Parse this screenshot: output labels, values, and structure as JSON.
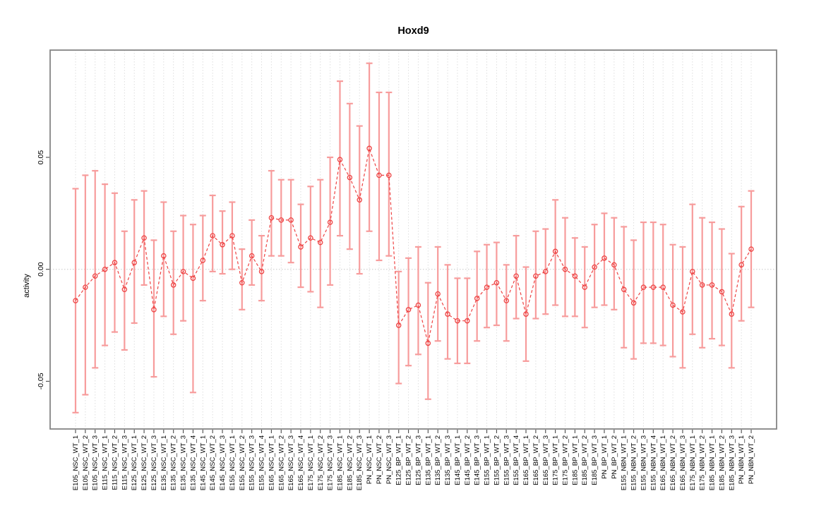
{
  "window": {
    "kind": "r-plot-device"
  },
  "colors": {
    "point_line": "#ee4343",
    "error_bar": "#f79c9c",
    "grid": "#dedede",
    "zero_line": "#c8c8c8",
    "axis_box": "#858585",
    "tick": "#4a4a4a",
    "text": "#000000",
    "background": "#ffffff"
  },
  "chart_data": {
    "type": "scatter",
    "title": "Hoxd9",
    "xlabel": "",
    "ylabel": "activity",
    "ylim": [
      -0.0713,
      0.0979
    ],
    "yticks": [
      -0.05,
      0.0,
      0.05
    ],
    "ytick_labels": [
      "-0.05",
      "0.00",
      "0.05"
    ],
    "grid": "vertical-dotted-per-category-plus-dotted-zero-line",
    "legend": "none",
    "marker": "open-circle",
    "line_style": "dashed",
    "error_bars": "vertical-with-caps",
    "categories": [
      "E105_NSC_WT_1",
      "E105_NSC_WT_2",
      "E105_NSC_WT_3",
      "E115_NSC_WT_1",
      "E115_NSC_WT_2",
      "E115_NSC_WT_3",
      "E125_NSC_WT_1",
      "E125_NSC_WT_2",
      "E125_NSC_WT_3",
      "E135_NSC_WT_1",
      "E135_NSC_WT_2",
      "E135_NSC_WT_3",
      "E135_NSC_WT_4",
      "E145_NSC_WT_1",
      "E145_NSC_WT_2",
      "E145_NSC_WT_3",
      "E155_NSC_WT_1",
      "E155_NSC_WT_2",
      "E155_NSC_WT_3",
      "E155_NSC_WT_4",
      "E165_NSC_WT_1",
      "E165_NSC_WT_2",
      "E165_NSC_WT_3",
      "E165_NSC_WT_4",
      "E175_NSC_WT_1",
      "E175_NSC_WT_2",
      "E175_NSC_WT_3",
      "E185_NSC_WT_1",
      "E185_NSC_WT_2",
      "E185_NSC_WT_3",
      "PN_NSC_WT_1",
      "PN_NSC_WT_2",
      "PN_NSC_WT_3",
      "E125_BP_WT_1",
      "E125_BP_WT_2",
      "E125_BP_WT_3",
      "E135_BP_WT_1",
      "E135_BP_WT_2",
      "E135_BP_WT_3",
      "E145_BP_WT_1",
      "E145_BP_WT_2",
      "E145_BP_WT_3",
      "E155_BP_WT_1",
      "E155_BP_WT_2",
      "E155_BP_WT_3",
      "E155_BP_WT_4",
      "E165_BP_WT_1",
      "E165_BP_WT_2",
      "E165_BP_WT_3",
      "E175_BP_WT_1",
      "E175_BP_WT_2",
      "E185_BP_WT_1",
      "E185_BP_WT_2",
      "E185_BP_WT_3",
      "PN_BP_WT_1",
      "PN_BP_WT_2",
      "E155_NBN_WT_1",
      "E155_NBN_WT_2",
      "E155_NBN_WT_3",
      "E155_NBN_WT_4",
      "E165_NBN_WT_1",
      "E165_NBN_WT_2",
      "E165_NBN_WT_3",
      "E175_NBN_WT_1",
      "E175_NBN_WT_2",
      "E185_NBN_WT_1",
      "E185_NBN_WT_2",
      "E185_NBN_WT_3",
      "PN_NBN_WT_1",
      "PN_NBN_WT_2"
    ],
    "series": [
      {
        "name": "mean_activity",
        "values": [
          -0.014,
          -0.008,
          -0.003,
          0.0,
          0.003,
          -0.009,
          0.003,
          0.014,
          -0.018,
          0.006,
          -0.007,
          -0.001,
          -0.004,
          0.004,
          0.015,
          0.011,
          0.015,
          -0.006,
          0.006,
          -0.001,
          0.023,
          0.022,
          0.022,
          0.01,
          0.014,
          0.012,
          0.021,
          0.049,
          0.041,
          0.031,
          0.054,
          0.042,
          0.042,
          -0.025,
          -0.018,
          -0.016,
          -0.033,
          -0.011,
          -0.02,
          -0.023,
          -0.023,
          -0.013,
          -0.008,
          -0.006,
          -0.014,
          -0.003,
          -0.02,
          -0.003,
          -0.001,
          0.008,
          0.0,
          -0.003,
          -0.008,
          0.001,
          0.005,
          0.002,
          -0.009,
          -0.015,
          -0.008,
          -0.008,
          -0.008,
          -0.016,
          -0.019,
          -0.001,
          -0.007,
          -0.007,
          -0.01,
          -0.02,
          0.002,
          0.009
        ]
      },
      {
        "name": "error_lower",
        "values": [
          -0.064,
          -0.056,
          -0.044,
          -0.034,
          -0.028,
          -0.036,
          -0.024,
          -0.007,
          -0.048,
          -0.021,
          -0.029,
          -0.023,
          -0.055,
          -0.014,
          -0.001,
          -0.002,
          0.0,
          -0.018,
          -0.007,
          -0.014,
          0.006,
          0.006,
          0.003,
          -0.008,
          -0.01,
          -0.017,
          -0.007,
          0.015,
          0.009,
          -0.002,
          0.017,
          0.004,
          0.006,
          -0.051,
          -0.043,
          -0.038,
          -0.058,
          -0.032,
          -0.04,
          -0.042,
          -0.042,
          -0.032,
          -0.026,
          -0.025,
          -0.032,
          -0.022,
          -0.041,
          -0.022,
          -0.02,
          -0.016,
          -0.021,
          -0.021,
          -0.026,
          -0.017,
          -0.016,
          -0.018,
          -0.035,
          -0.04,
          -0.033,
          -0.033,
          -0.034,
          -0.039,
          -0.044,
          -0.029,
          -0.035,
          -0.031,
          -0.034,
          -0.044,
          -0.023,
          -0.017
        ]
      },
      {
        "name": "error_upper",
        "values": [
          0.036,
          0.042,
          0.044,
          0.038,
          0.034,
          0.017,
          0.031,
          0.035,
          0.013,
          0.03,
          0.017,
          0.024,
          0.02,
          0.024,
          0.033,
          0.026,
          0.03,
          0.009,
          0.022,
          0.015,
          0.044,
          0.04,
          0.04,
          0.029,
          0.037,
          0.04,
          0.05,
          0.084,
          0.074,
          0.064,
          0.092,
          0.079,
          0.079,
          -0.001,
          0.005,
          0.01,
          -0.006,
          0.01,
          0.002,
          -0.004,
          -0.004,
          0.008,
          0.011,
          0.012,
          0.002,
          0.015,
          0.001,
          0.017,
          0.018,
          0.031,
          0.023,
          0.014,
          0.01,
          0.02,
          0.025,
          0.023,
          0.019,
          0.013,
          0.021,
          0.021,
          0.02,
          0.011,
          0.01,
          0.029,
          0.023,
          0.021,
          0.018,
          0.007,
          0.028,
          0.035
        ]
      }
    ]
  }
}
